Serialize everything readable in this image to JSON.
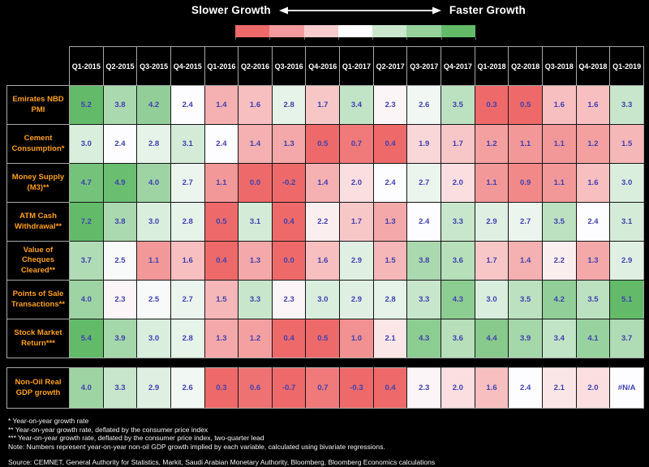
{
  "chart_data": {
    "type": "heatmap",
    "title": "",
    "color_axis": {
      "slower_label": "Slower Growth",
      "faster_label": "Faster Growth",
      "scale_colors": [
        "#ee6a6a",
        "#f39b9c",
        "#f8cccd",
        "#fdfdff",
        "#cae7cd",
        "#96d19c",
        "#63bb6a"
      ],
      "red_point": 0.5,
      "white_point": 2.4,
      "green_point": 5.0
    },
    "columns": [
      "Q1-2015",
      "Q2-2015",
      "Q3-2015",
      "Q4-2015",
      "Q1-2016",
      "Q2-2016",
      "Q3-2016",
      "Q4-2016",
      "Q1-2017",
      "Q2-2017",
      "Q3-2017",
      "Q4-2017",
      "Q1-2018",
      "Q2-2018",
      "Q3-2018",
      "Q4-2018",
      "Q1-2019"
    ],
    "rows": [
      {
        "label": "Emirates NBD PMI",
        "values": [
          "5.2",
          "3.8",
          "4.2",
          "2.4",
          "1.4",
          "1.6",
          "2.8",
          "1.7",
          "3.4",
          "2.3",
          "2.6",
          "3.5",
          "0.3",
          "0.5",
          "1.6",
          "1.6",
          "3.3"
        ]
      },
      {
        "label": "Cement Consumption*",
        "values": [
          "3.0",
          "2.4",
          "2.8",
          "3.1",
          "2.4",
          "1.4",
          "1.3",
          "0.5",
          "0.7",
          "0.4",
          "1.9",
          "1.7",
          "1.2",
          "1.1",
          "1.1",
          "1.2",
          "1.5"
        ]
      },
      {
        "label": "Money Supply (M3)**",
        "values": [
          "4.7",
          "4.9",
          "4.0",
          "2.7",
          "1.1",
          "0.0",
          "-0.2",
          "1.4",
          "2.0",
          "2.4",
          "2.7",
          "2.0",
          "1.1",
          "0.9",
          "1.1",
          "1.6",
          "3.0"
        ]
      },
      {
        "label": "ATM Cash Withdrawal**",
        "values": [
          "7.2",
          "3.8",
          "3.0",
          "2.8",
          "0.5",
          "3.1",
          "0.4",
          "2.2",
          "1.7",
          "1.3",
          "2.4",
          "3.3",
          "2.9",
          "2.7",
          "3.5",
          "2.4",
          "3.1"
        ]
      },
      {
        "label": "Value of Cheques Cleared**",
        "values": [
          "3.7",
          "2.5",
          "1.1",
          "1.6",
          "0.4",
          "1.3",
          "0.0",
          "1.6",
          "2.9",
          "1.5",
          "3.8",
          "3.6",
          "1.7",
          "1.4",
          "2.2",
          "1.3",
          "2.9"
        ]
      },
      {
        "label": "Points of Sale Transactions**",
        "values": [
          "4.0",
          "2.3",
          "2.5",
          "2.7",
          "1.5",
          "3.3",
          "2.3",
          "3.0",
          "2.9",
          "2.8",
          "3.3",
          "4.3",
          "3.0",
          "3.5",
          "4.2",
          "3.5",
          "5.1"
        ]
      },
      {
        "label": "Stock Market Return***",
        "values": [
          "5.4",
          "3.9",
          "3.0",
          "2.8",
          "1.3",
          "1.2",
          "0.4",
          "0.5",
          "1.0",
          "2.1",
          "4.3",
          "3.6",
          "4.4",
          "3.9",
          "3.4",
          "4.1",
          "3.7"
        ]
      },
      {
        "label": "Non-Oil Real GDP growth",
        "separate_band": true,
        "values": [
          "4.0",
          "3.3",
          "2.9",
          "2.6",
          "0.3",
          "0.6",
          "-0.7",
          "0.7",
          "-0.3",
          "0.4",
          "2.3",
          "2.0",
          "1.6",
          "2.4",
          "2.1",
          "2.0",
          "#N/A"
        ]
      }
    ]
  },
  "footnotes": [
    "* Year-on-year growth rate",
    "** Year-on-year growth rate, deflated by the consumer price index",
    "*** Year-on-year growth rate, deflated by the consumer price index, two-quarter lead",
    "Note: Numbers represent year-on-year non-oil GDP growth implied by each variable, calculated using bivariate regressions."
  ],
  "source": "Source: CEMNET, General Authority for Statistics, Markit, Saudi Arabian Monetary Authority, Bloomberg, Bloomberg Economics calculations",
  "colors": {
    "background": "#000000",
    "row_label_text": "#ffa021",
    "cell_value_text": "#4040b0",
    "header_text": "#ffffff",
    "grid_line": "#a8a8a8"
  }
}
